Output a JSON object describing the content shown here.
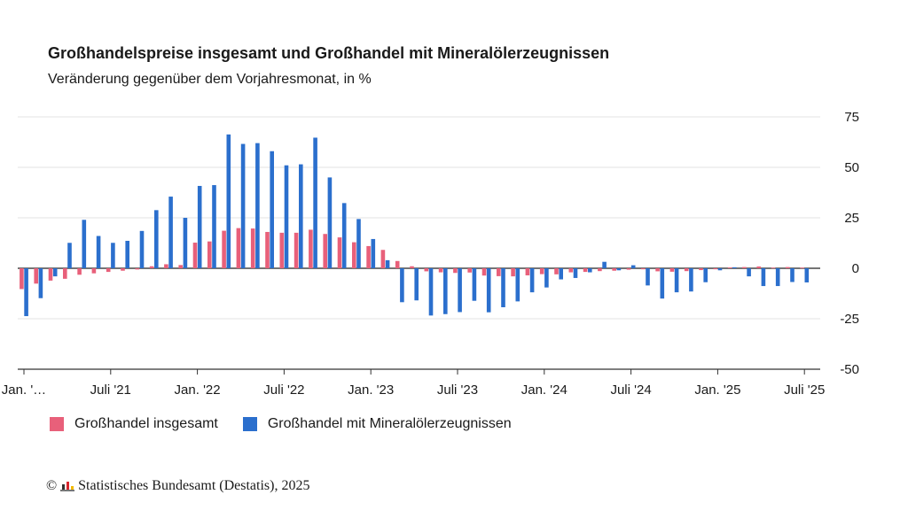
{
  "title": "Großhandelspreise insgesamt und Großhandel mit Mineralölerzeugnissen",
  "subtitle": "Veränderung gegenüber dem Vorjahresmonat, in %",
  "source": "Statistisches Bundesamt (Destatis), 2025",
  "copyright_symbol": "©",
  "colors": {
    "series1": "#e8607a",
    "series2": "#2b6fcd",
    "grid": "#e3e3e3",
    "axis": "#333333"
  },
  "chart_data": {
    "type": "bar",
    "ylim": [
      -50,
      75
    ],
    "yticks": [
      75,
      50,
      25,
      0,
      -25,
      -50
    ],
    "grid": true,
    "legend_position": "bottom-left",
    "categories": [
      "2021-01",
      "2021-02",
      "2021-03",
      "2021-04",
      "2021-05",
      "2021-06",
      "2021-07",
      "2021-08",
      "2021-09",
      "2021-10",
      "2021-11",
      "2021-12",
      "2022-01",
      "2022-02",
      "2022-03",
      "2022-04",
      "2022-05",
      "2022-06",
      "2022-07",
      "2022-08",
      "2022-09",
      "2022-10",
      "2022-11",
      "2022-12",
      "2023-01",
      "2023-02",
      "2023-03",
      "2023-04",
      "2023-05",
      "2023-06",
      "2023-07",
      "2023-08",
      "2023-09",
      "2023-10",
      "2023-11",
      "2023-12",
      "2024-01",
      "2024-02",
      "2024-03",
      "2024-04",
      "2024-05",
      "2024-06",
      "2024-07",
      "2024-08",
      "2024-09",
      "2024-10",
      "2024-11",
      "2024-12",
      "2025-01",
      "2025-02",
      "2025-03",
      "2025-04",
      "2025-05",
      "2025-06",
      "2025-07"
    ],
    "x_tick_labels": [
      {
        "index": 0,
        "label": "Jan. '…"
      },
      {
        "index": 6,
        "label": "Juli '21"
      },
      {
        "index": 12,
        "label": "Jan. '22"
      },
      {
        "index": 18,
        "label": "Juli '22"
      },
      {
        "index": 24,
        "label": "Jan. '23"
      },
      {
        "index": 30,
        "label": "Juli '23"
      },
      {
        "index": 36,
        "label": "Jan. '24"
      },
      {
        "index": 42,
        "label": "Juli '24"
      },
      {
        "index": 48,
        "label": "Jan. '25"
      },
      {
        "index": 54,
        "label": "Juli '25"
      }
    ],
    "series": [
      {
        "name": "Großhandel insgesamt",
        "color": "#e8607a",
        "values": [
          -10.3,
          -7.6,
          -6.1,
          -5.2,
          -3.2,
          -2.5,
          -1.8,
          -1.2,
          -0.6,
          1.0,
          2.0,
          1.6,
          12.7,
          13.3,
          18.6,
          19.9,
          19.7,
          18.0,
          17.6,
          17.6,
          19.1,
          17.0,
          15.3,
          12.9,
          11.0,
          9.1,
          3.6,
          1.0,
          -1.5,
          -2.0,
          -2.3,
          -2.1,
          -3.6,
          -3.9,
          -4.0,
          -3.5,
          -2.9,
          -3.0,
          -2.0,
          -1.8,
          -1.4,
          -1.2,
          -0.7,
          -0.5,
          -1.5,
          -1.7,
          -1.4,
          -0.9,
          -0.5,
          0.4,
          0.6,
          0.9,
          0.3,
          0.6,
          0.3
        ]
      },
      {
        "name": "Großhandel mit Mineralölerzeugnissen",
        "color": "#2b6fcd",
        "values": [
          -23.7,
          -14.8,
          -4.0,
          12.6,
          24.0,
          16.0,
          12.6,
          13.6,
          18.5,
          28.8,
          35.5,
          25.0,
          40.8,
          41.2,
          66.3,
          61.6,
          62.0,
          58.0,
          51.0,
          51.5,
          64.7,
          45.0,
          32.3,
          24.4,
          14.5,
          4.0,
          -16.8,
          -15.9,
          -23.4,
          -22.7,
          -21.7,
          -16.1,
          -21.8,
          -19.3,
          -16.4,
          -11.9,
          -9.5,
          -5.5,
          -4.8,
          -2.0,
          3.2,
          -1.0,
          1.5,
          -8.5,
          -15.0,
          -11.9,
          -11.5,
          -6.9,
          -1.0,
          0.5,
          -4.0,
          -8.8,
          -8.8,
          -6.8,
          -7.0
        ]
      }
    ]
  }
}
